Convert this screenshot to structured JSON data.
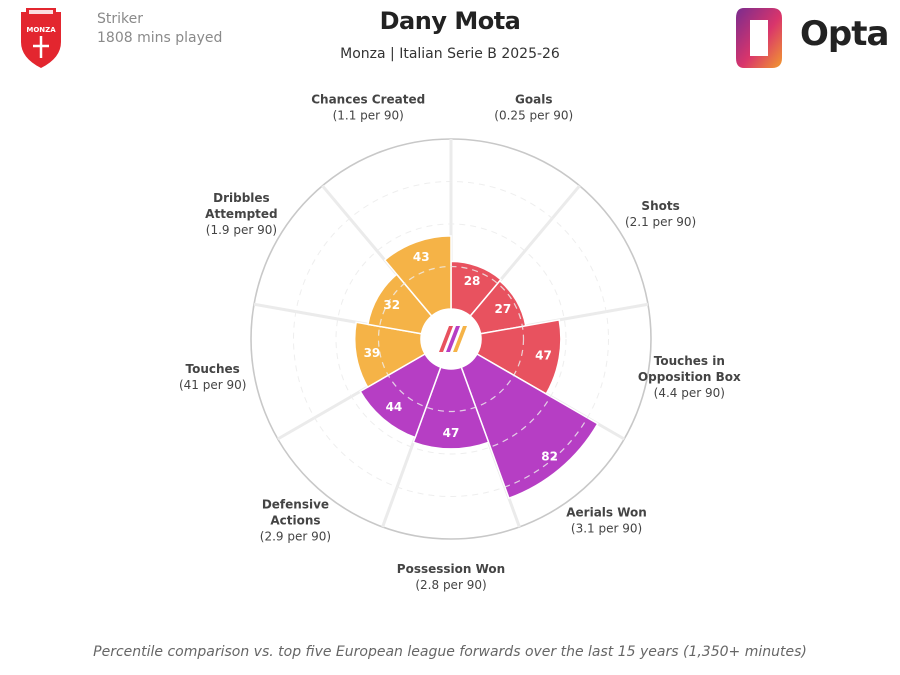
{
  "header": {
    "position": "Striker",
    "minutes": "1808 mins played",
    "player_name": "Dany Mota",
    "team_season": "Monza | Italian Serie B 2025-26",
    "brand": "Opta",
    "badge_text": "MONZA"
  },
  "footnote": "Percentile comparison vs. top five European league forwards over the last 15 years (1,350+ minutes)",
  "colors": {
    "attacking": "#e8525f",
    "possession": "#f5b347",
    "defending": "#b63ec4",
    "ring": "#d9d9d9",
    "outer_ring": "#c8c8c8"
  },
  "chart_data": {
    "type": "polar-bar",
    "range": [
      0,
      100
    ],
    "metrics": [
      {
        "name": "Goals",
        "rate": "(0.25 per 90)",
        "percentile": 28,
        "group": "attacking"
      },
      {
        "name": "Shots",
        "rate": "(2.1 per 90)",
        "percentile": 27,
        "group": "attacking"
      },
      {
        "name": "Touches in\nOpposition Box",
        "rate": "(4.4 per 90)",
        "percentile": 47,
        "group": "attacking"
      },
      {
        "name": "Aerials Won",
        "rate": "(3.1 per 90)",
        "percentile": 82,
        "group": "defending"
      },
      {
        "name": "Possession Won",
        "rate": "(2.8 per 90)",
        "percentile": 47,
        "group": "defending"
      },
      {
        "name": "Defensive\nActions",
        "rate": "(2.9 per 90)",
        "percentile": 44,
        "group": "defending"
      },
      {
        "name": "Touches",
        "rate": "(41 per 90)",
        "percentile": 39,
        "group": "possession"
      },
      {
        "name": "Dribbles\nAttempted",
        "rate": "(1.9 per 90)",
        "percentile": 32,
        "group": "possession"
      },
      {
        "name": "Chances Created",
        "rate": "(1.1 per 90)",
        "percentile": 43,
        "group": "possession"
      }
    ]
  }
}
